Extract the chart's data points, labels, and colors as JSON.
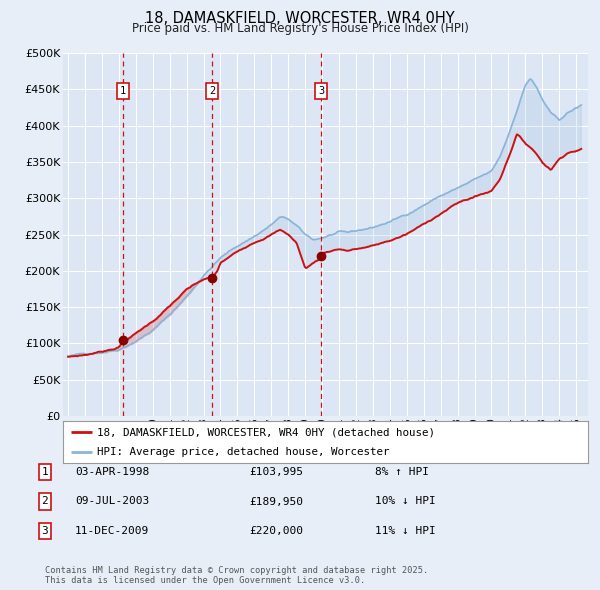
{
  "title": "18, DAMASKFIELD, WORCESTER, WR4 0HY",
  "subtitle": "Price paid vs. HM Land Registry's House Price Index (HPI)",
  "bg_color": "#e8eef7",
  "plot_bg_color": "#dce6f4",
  "grid_color": "#ffffff",
  "hpi_line_color": "#8ab4d8",
  "price_line_color": "#cc1111",
  "sale_marker_color": "#880000",
  "dashed_line_color": "#cc1111",
  "ylim": [
    0,
    500000
  ],
  "yticks": [
    0,
    50000,
    100000,
    150000,
    200000,
    250000,
    300000,
    350000,
    400000,
    450000,
    500000
  ],
  "sales": [
    {
      "label": "1",
      "date": "03-APR-1998",
      "price": 103995,
      "pct": "8%",
      "dir": "↑",
      "x_year": 1998.25
    },
    {
      "label": "2",
      "date": "09-JUL-2003",
      "price": 189950,
      "pct": "10%",
      "dir": "↓",
      "x_year": 2003.52
    },
    {
      "label": "3",
      "date": "11-DEC-2009",
      "price": 220000,
      "pct": "11%",
      "dir": "↓",
      "x_year": 2009.94
    }
  ],
  "legend_entries": [
    {
      "label": "18, DAMASKFIELD, WORCESTER, WR4 0HY (detached house)",
      "color": "#cc1111"
    },
    {
      "label": "HPI: Average price, detached house, Worcester",
      "color": "#8ab4d8"
    }
  ],
  "footnote": "Contains HM Land Registry data © Crown copyright and database right 2025.\nThis data is licensed under the Open Government Licence v3.0.",
  "xmin": 1994.7,
  "xmax": 2025.7,
  "hpi_years_key": [
    1995,
    1996,
    1997,
    1998,
    1999,
    2000,
    2001,
    2002,
    2003,
    2004,
    2005,
    2006,
    2007,
    2007.5,
    2008,
    2008.5,
    2009,
    2009.5,
    2010,
    2010.5,
    2011,
    2011.5,
    2012,
    2013,
    2014,
    2015,
    2016,
    2017,
    2018,
    2019,
    2020,
    2020.5,
    2021,
    2021.5,
    2022,
    2022.3,
    2022.7,
    2023,
    2023.5,
    2024,
    2024.5,
    2025.3
  ],
  "hpi_vals_key": [
    82000,
    85000,
    89000,
    94000,
    107000,
    122000,
    143000,
    168000,
    198000,
    222000,
    238000,
    252000,
    268000,
    278000,
    275000,
    265000,
    252000,
    245000,
    248000,
    252000,
    255000,
    253000,
    255000,
    260000,
    268000,
    278000,
    292000,
    305000,
    315000,
    325000,
    335000,
    355000,
    385000,
    420000,
    455000,
    465000,
    450000,
    435000,
    415000,
    405000,
    415000,
    425000
  ],
  "prop_years_key": [
    1995,
    1996,
    1997,
    1998.0,
    1998.25,
    1998.5,
    1999,
    2000,
    2001,
    2002,
    2003.0,
    2003.52,
    2003.8,
    2004,
    2005,
    2006,
    2007,
    2007.5,
    2008,
    2008.5,
    2009.0,
    2009.94,
    2010,
    2010.5,
    2011,
    2011.5,
    2012,
    2013,
    2014,
    2015,
    2016,
    2017,
    2018,
    2019,
    2020,
    2020.5,
    2021,
    2021.5,
    2022,
    2022.3,
    2022.7,
    2023,
    2023.5,
    2024,
    2024.5,
    2025.3
  ],
  "prop_vals_key": [
    81000,
    84000,
    89000,
    96000,
    103995,
    107000,
    115000,
    132000,
    153000,
    175000,
    188000,
    189950,
    198000,
    210000,
    225000,
    240000,
    252000,
    258000,
    252000,
    240000,
    205000,
    220000,
    226000,
    230000,
    233000,
    231000,
    233000,
    237000,
    244000,
    253000,
    266000,
    282000,
    296000,
    305000,
    313000,
    330000,
    360000,
    393000,
    380000,
    375000,
    365000,
    355000,
    345000,
    360000,
    370000,
    375000
  ]
}
